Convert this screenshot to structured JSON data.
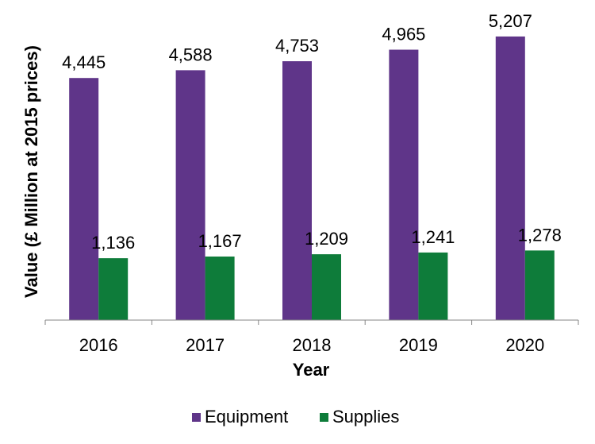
{
  "chart_data": {
    "type": "bar",
    "categories": [
      "2016",
      "2017",
      "2018",
      "2019",
      "2020"
    ],
    "series": [
      {
        "name": "Equipment",
        "color": "#5f3589",
        "values": [
          4445,
          4588,
          4753,
          4965,
          5207
        ],
        "labels": [
          "4,445",
          "4,588",
          "4,753",
          "4,965",
          "5,207"
        ]
      },
      {
        "name": "Supplies",
        "color": "#0e7c3a",
        "values": [
          1136,
          1167,
          1209,
          1241,
          1278
        ],
        "labels": [
          "1,136",
          "1,167",
          "1,209",
          "1,241",
          "1,278"
        ]
      }
    ],
    "xlabel": "Year",
    "ylabel": "Value (£ Million at 2015 prices)",
    "ylim": [
      0,
      5600
    ],
    "grid": false,
    "legend_position": "bottom"
  }
}
